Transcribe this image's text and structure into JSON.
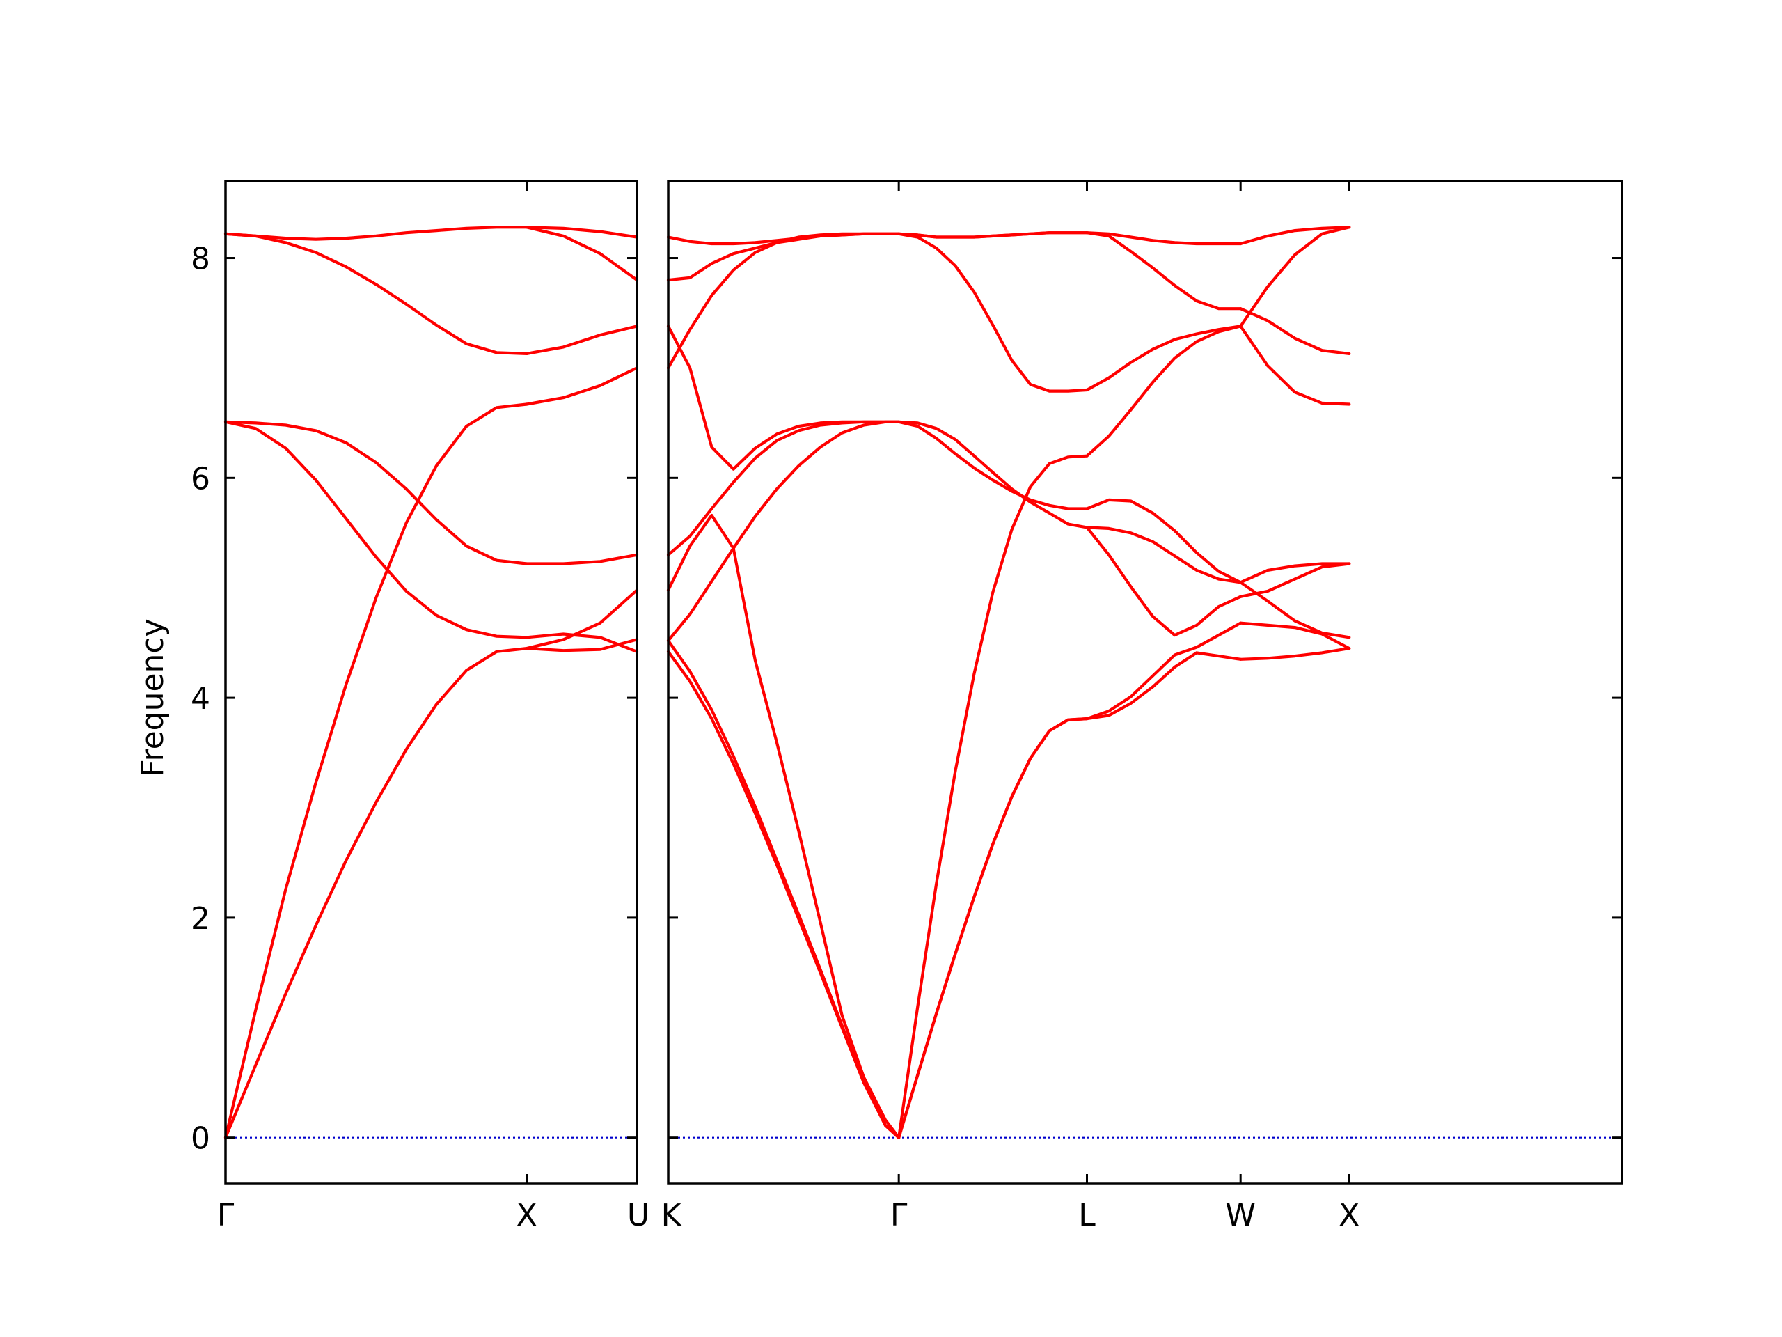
{
  "chart_data": {
    "type": "line",
    "title": "",
    "ylabel": "Frequency",
    "xlabel": "",
    "ylim": [
      -0.42,
      8.7
    ],
    "yticks": [
      0,
      2,
      4,
      6,
      8
    ],
    "grid": false,
    "legend": "none",
    "band_color": "#ff0000",
    "zero_line_color": "#0000cc",
    "panels": [
      {
        "id": "left",
        "xlim": [
          0,
          1.366
        ],
        "ticks": [
          {
            "x": 0,
            "label": "Γ"
          },
          {
            "x": 1.0,
            "label": "X"
          },
          {
            "x": 1.366,
            "label": "U"
          }
        ],
        "segments": [
          {
            "name": "Γ-X",
            "x": [
              0,
              0.1,
              0.2,
              0.3,
              0.4,
              0.5,
              0.6,
              0.7,
              0.8,
              0.9,
              1.0
            ],
            "bands": [
              [
                0,
                0.66,
                1.31,
                1.93,
                2.52,
                3.05,
                3.53,
                3.94,
                4.25,
                4.42,
                4.45
              ],
              [
                0,
                1.16,
                2.26,
                3.23,
                4.12,
                4.91,
                5.59,
                6.11,
                6.47,
                6.64,
                6.67
              ],
              [
                6.51,
                6.45,
                6.27,
                5.98,
                5.63,
                5.28,
                4.97,
                4.75,
                4.62,
                4.56,
                4.55
              ],
              [
                6.51,
                6.5,
                6.48,
                6.43,
                6.32,
                6.14,
                5.9,
                5.62,
                5.38,
                5.25,
                5.22
              ],
              [
                8.22,
                8.2,
                8.14,
                8.05,
                7.92,
                7.76,
                7.58,
                7.39,
                7.22,
                7.14,
                7.13
              ],
              [
                8.22,
                8.2,
                8.18,
                8.17,
                8.18,
                8.2,
                8.23,
                8.25,
                8.27,
                8.28,
                8.28
              ]
            ]
          },
          {
            "name": "X-U",
            "x": [
              1.0,
              1.122,
              1.244,
              1.366
            ],
            "bands": [
              [
                4.45,
                4.43,
                4.44,
                4.53
              ],
              [
                4.45,
                4.53,
                4.68,
                4.98
              ],
              [
                4.55,
                4.58,
                4.55,
                4.42
              ],
              [
                5.22,
                5.22,
                5.24,
                5.3
              ],
              [
                6.67,
                6.73,
                6.84,
                7.0
              ],
              [
                7.13,
                7.19,
                7.3,
                7.38
              ],
              [
                8.28,
                8.2,
                8.04,
                7.8
              ],
              [
                8.28,
                8.27,
                8.24,
                8.19
              ]
            ]
          }
        ]
      },
      {
        "id": "right",
        "xlim": [
          0,
          4.389
        ],
        "ticks": [
          {
            "x": 0,
            "label": "K"
          },
          {
            "x": 1.061,
            "label": "Γ"
          },
          {
            "x": 1.927,
            "label": "L"
          },
          {
            "x": 2.634,
            "label": "W"
          },
          {
            "x": 3.134,
            "label": "X"
          }
        ],
        "segments": [
          {
            "name": "K-Γ",
            "x": [
              0,
              0.1,
              0.2,
              0.3,
              0.4,
              0.5,
              0.6,
              0.7,
              0.8,
              0.9,
              1.0,
              1.061
            ],
            "bands": [
              [
                4.42,
                4.15,
                3.81,
                3.4,
                2.95,
                2.48,
                1.99,
                1.5,
                1.0,
                0.5,
                0.11,
                0
              ],
              [
                4.52,
                4.24,
                3.89,
                3.47,
                3.01,
                2.52,
                2.03,
                1.53,
                1.02,
                0.51,
                0.11,
                0
              ],
              [
                4.98,
                5.38,
                5.66,
                5.36,
                4.34,
                3.59,
                2.79,
                1.96,
                1.11,
                0.55,
                0.16,
                0
              ],
              [
                4.52,
                4.76,
                5.06,
                5.36,
                5.65,
                5.9,
                6.11,
                6.28,
                6.41,
                6.48,
                6.51,
                6.51
              ],
              [
                5.3,
                5.47,
                5.72,
                5.96,
                6.18,
                6.34,
                6.43,
                6.48,
                6.5,
                6.51,
                6.51,
                6.51
              ],
              [
                7.38,
                7.0,
                6.28,
                6.08,
                6.27,
                6.4,
                6.47,
                6.5,
                6.51,
                6.51,
                6.51,
                6.51
              ],
              [
                7.0,
                7.35,
                7.66,
                7.89,
                8.05,
                8.14,
                8.19,
                8.21,
                8.22,
                8.22,
                8.22,
                8.22
              ],
              [
                7.8,
                7.82,
                7.95,
                8.04,
                8.09,
                8.14,
                8.17,
                8.2,
                8.21,
                8.22,
                8.22,
                8.22
              ],
              [
                8.19,
                8.15,
                8.13,
                8.13,
                8.14,
                8.16,
                8.18,
                8.2,
                8.21,
                8.22,
                8.22,
                8.22
              ]
            ]
          },
          {
            "name": "Γ-L",
            "x": [
              1.061,
              1.148,
              1.234,
              1.321,
              1.408,
              1.494,
              1.581,
              1.667,
              1.754,
              1.84,
              1.927
            ],
            "bands": [
              [
                0,
                0.57,
                1.13,
                1.67,
                2.19,
                2.67,
                3.1,
                3.45,
                3.7,
                3.8,
                3.81
              ],
              [
                0,
                0.57,
                1.13,
                1.67,
                2.19,
                2.67,
                3.1,
                3.45,
                3.7,
                3.8,
                3.81
              ],
              [
                0,
                1.19,
                2.31,
                3.33,
                4.22,
                4.96,
                5.53,
                5.92,
                6.13,
                6.19,
                6.2
              ],
              [
                6.51,
                6.5,
                6.45,
                6.35,
                6.2,
                6.05,
                5.9,
                5.78,
                5.68,
                5.58,
                5.55
              ],
              [
                6.51,
                6.47,
                6.36,
                6.22,
                6.09,
                5.98,
                5.88,
                5.8,
                5.75,
                5.72,
                5.72
              ],
              [
                8.22,
                8.19,
                8.09,
                7.93,
                7.69,
                7.39,
                7.07,
                6.85,
                6.79,
                6.79,
                6.8
              ],
              [
                8.22,
                8.21,
                8.19,
                8.19,
                8.19,
                8.2,
                8.21,
                8.22,
                8.23,
                8.23,
                8.23
              ],
              [
                8.22,
                8.21,
                8.19,
                8.19,
                8.19,
                8.2,
                8.21,
                8.22,
                8.23,
                8.23,
                8.23
              ]
            ]
          },
          {
            "name": "L-W",
            "x": [
              1.927,
              2.028,
              2.129,
              2.23,
              2.331,
              2.432,
              2.533,
              2.634
            ],
            "bands": [
              [
                3.81,
                3.84,
                3.95,
                4.1,
                4.28,
                4.41,
                4.38,
                4.35
              ],
              [
                3.81,
                3.88,
                4.01,
                4.2,
                4.39,
                4.46,
                4.57,
                4.68
              ],
              [
                5.55,
                5.3,
                5.01,
                4.74,
                4.57,
                4.66,
                4.83,
                4.92
              ],
              [
                5.55,
                5.54,
                5.5,
                5.42,
                5.29,
                5.16,
                5.08,
                5.05
              ],
              [
                5.72,
                5.8,
                5.79,
                5.68,
                5.52,
                5.32,
                5.15,
                5.05
              ],
              [
                6.2,
                6.38,
                6.62,
                6.87,
                7.09,
                7.24,
                7.33,
                7.38
              ],
              [
                6.8,
                6.91,
                7.05,
                7.17,
                7.26,
                7.31,
                7.35,
                7.38
              ],
              [
                8.23,
                8.2,
                8.06,
                7.91,
                7.75,
                7.61,
                7.54,
                7.54
              ],
              [
                8.23,
                8.22,
                8.19,
                8.16,
                8.14,
                8.13,
                8.13,
                8.13
              ]
            ]
          },
          {
            "name": "W-X",
            "x": [
              2.634,
              2.759,
              2.884,
              3.009,
              3.134
            ],
            "bands": [
              [
                4.35,
                4.36,
                4.38,
                4.41,
                4.45
              ],
              [
                4.68,
                4.66,
                4.64,
                4.58,
                4.45
              ],
              [
                4.92,
                4.97,
                5.08,
                5.19,
                5.22
              ],
              [
                5.05,
                4.88,
                4.7,
                4.59,
                4.55
              ],
              [
                5.05,
                5.16,
                5.2,
                5.22,
                5.22
              ],
              [
                7.38,
                7.02,
                6.78,
                6.68,
                6.67
              ],
              [
                7.38,
                7.74,
                8.03,
                8.22,
                8.28
              ],
              [
                7.54,
                7.43,
                7.27,
                7.16,
                7.13
              ],
              [
                8.13,
                8.2,
                8.25,
                8.27,
                8.28
              ]
            ]
          }
        ]
      }
    ]
  }
}
